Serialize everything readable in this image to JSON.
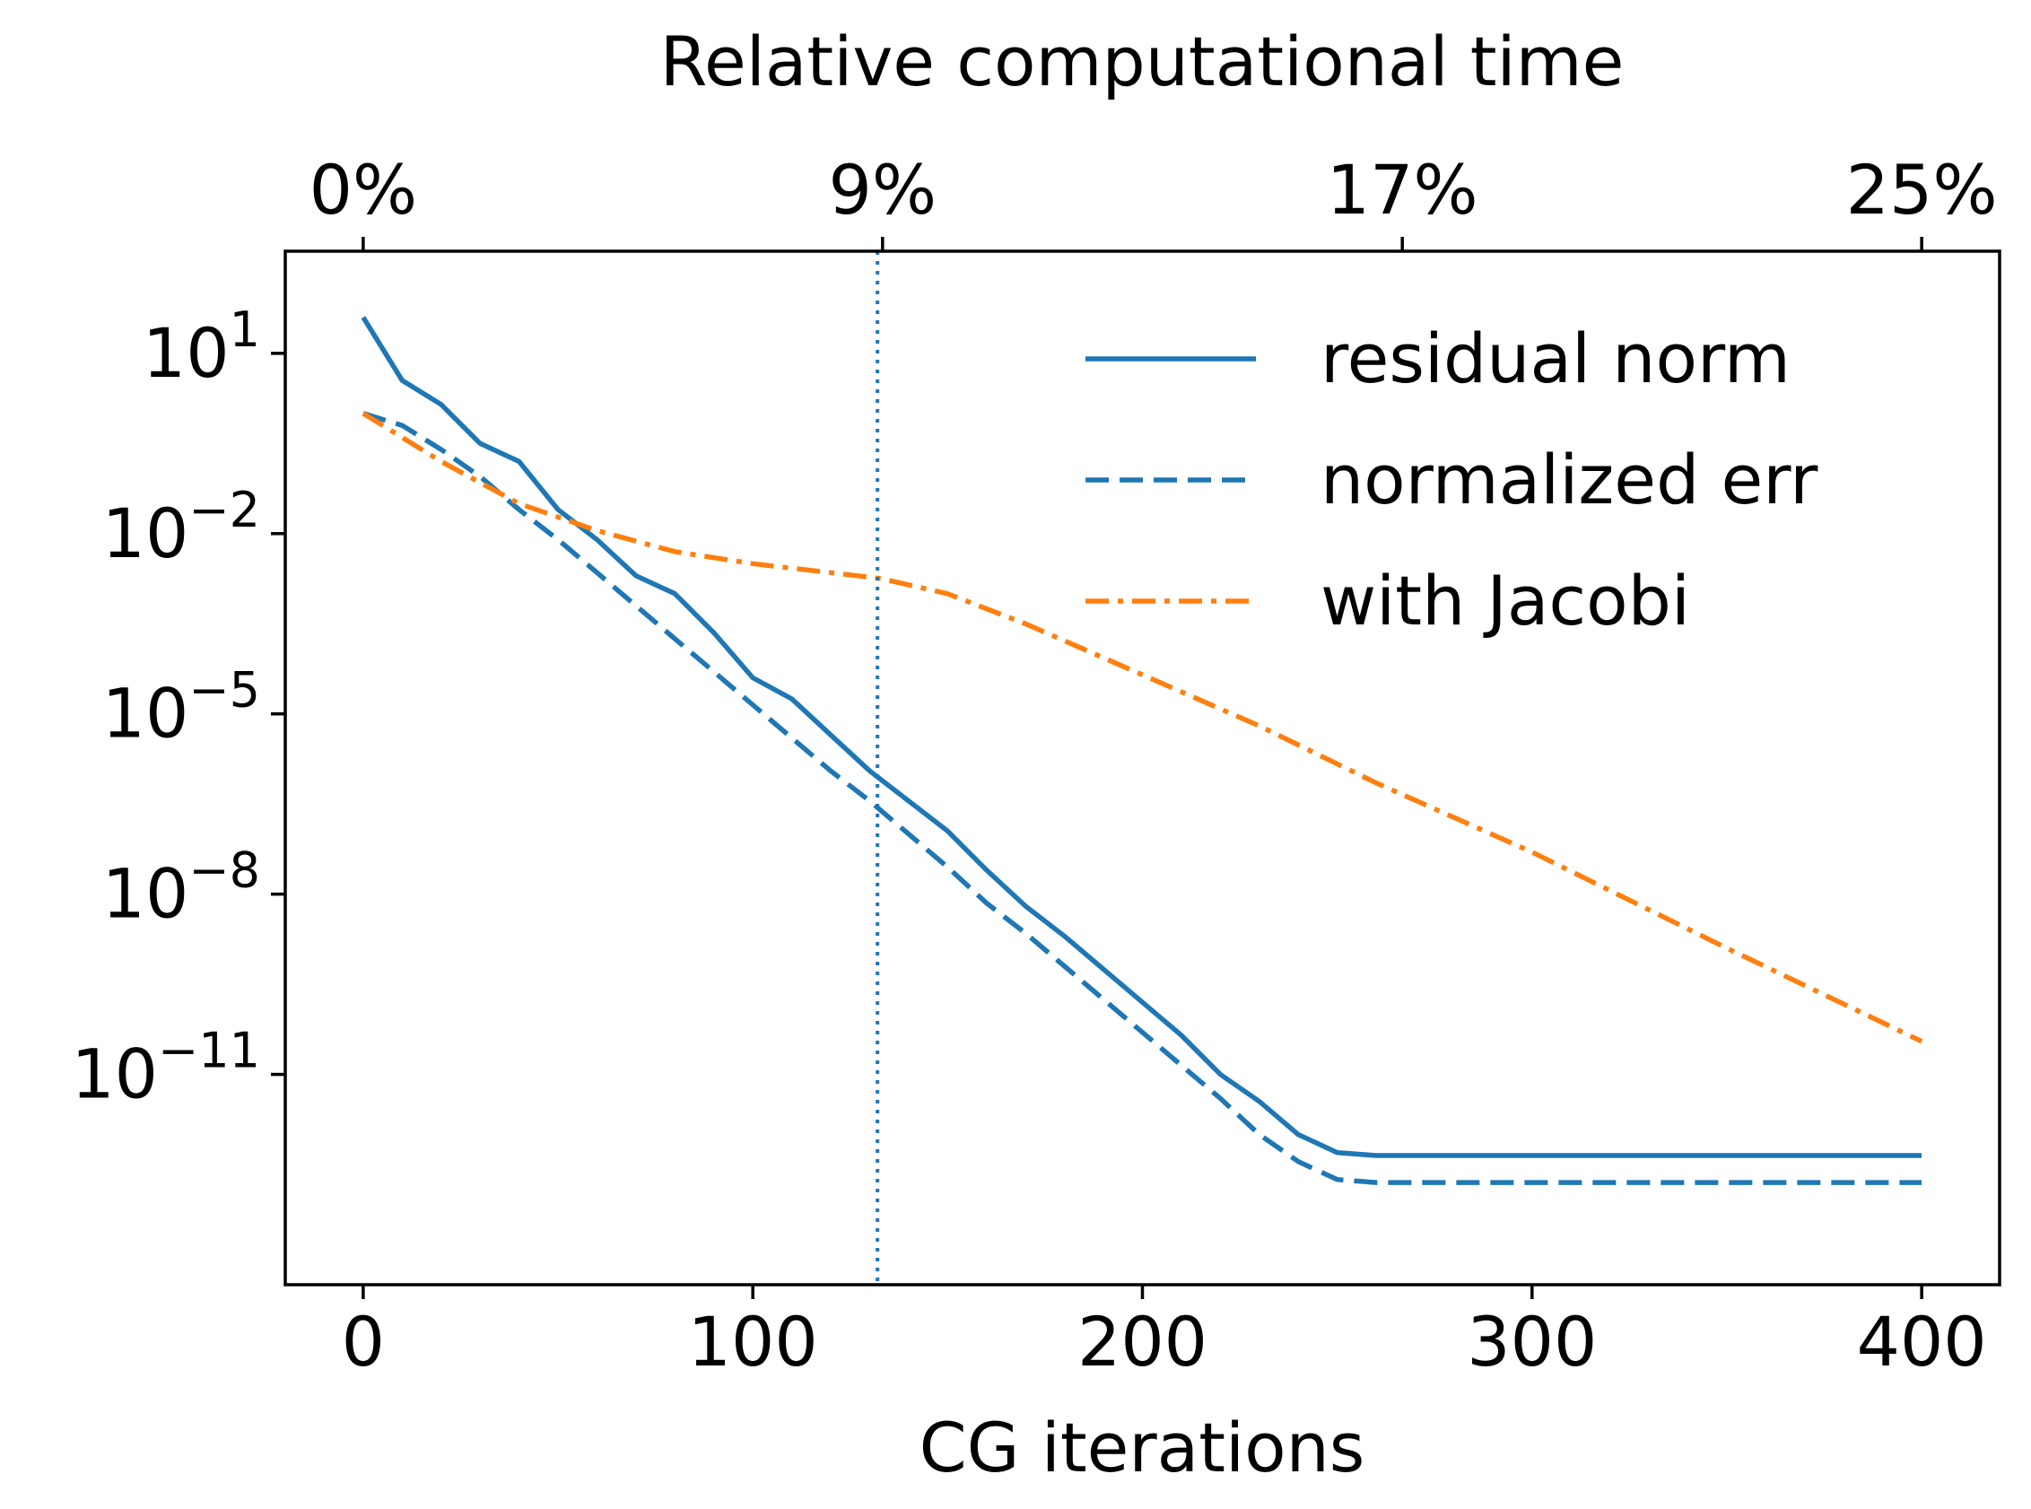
{
  "chart_data": {
    "type": "line",
    "title": "",
    "xlabel": "CG iterations",
    "ylabel": "",
    "top_xlabel": "Relative computational time",
    "yscale": "log",
    "xlim": [
      -20,
      420
    ],
    "ylim_exp": [
      -14.5,
      2.7
    ],
    "x_ticks": [
      {
        "value": 0,
        "label": "0"
      },
      {
        "value": 100,
        "label": "100"
      },
      {
        "value": 200,
        "label": "200"
      },
      {
        "value": 300,
        "label": "300"
      },
      {
        "value": 400,
        "label": "400"
      }
    ],
    "y_ticks": [
      {
        "exp": 1,
        "base": "10",
        "sup": "1"
      },
      {
        "exp": -2,
        "base": "10",
        "sup": "−2"
      },
      {
        "exp": -5,
        "base": "10",
        "sup": "−5"
      },
      {
        "exp": -8,
        "base": "10",
        "sup": "−8"
      },
      {
        "exp": -11,
        "base": "10",
        "sup": "−11"
      }
    ],
    "top_ticks": [
      {
        "value": 0,
        "label": "0%"
      },
      {
        "value": 133.3,
        "label": "9%"
      },
      {
        "value": 266.7,
        "label": "17%"
      },
      {
        "value": 400,
        "label": "25%"
      }
    ],
    "vline_x": 132,
    "legend_position": "top-right",
    "grid": false,
    "series": [
      {
        "name": "residual norm",
        "color": "#1f77b4",
        "style": "solid",
        "x": [
          0,
          10,
          20,
          30,
          40,
          50,
          60,
          70,
          80,
          90,
          100,
          110,
          120,
          130,
          140,
          150,
          160,
          170,
          180,
          190,
          200,
          210,
          220,
          230,
          240,
          250,
          260,
          270,
          300,
          350,
          400
        ],
        "log10y": [
          1.6,
          0.55,
          0.15,
          -0.5,
          -0.8,
          -1.6,
          -2.1,
          -2.7,
          -3.0,
          -3.65,
          -4.4,
          -4.75,
          -5.35,
          -5.95,
          -6.45,
          -6.95,
          -7.6,
          -8.2,
          -8.7,
          -9.25,
          -9.8,
          -10.35,
          -11.0,
          -11.45,
          -12.0,
          -12.3,
          -12.35,
          -12.35,
          -12.35,
          -12.35,
          -12.35
        ]
      },
      {
        "name": "normalized err",
        "color": "#1f77b4",
        "style": "dashed",
        "x": [
          0,
          10,
          20,
          30,
          40,
          50,
          60,
          70,
          80,
          90,
          100,
          110,
          120,
          130,
          140,
          150,
          160,
          170,
          180,
          190,
          200,
          210,
          220,
          230,
          240,
          250,
          260,
          300,
          350,
          400
        ],
        "log10y": [
          0.0,
          -0.2,
          -0.6,
          -1.05,
          -1.6,
          -2.1,
          -2.65,
          -3.2,
          -3.75,
          -4.3,
          -4.85,
          -5.4,
          -5.95,
          -6.45,
          -7.0,
          -7.55,
          -8.15,
          -8.65,
          -9.2,
          -9.75,
          -10.3,
          -10.85,
          -11.4,
          -12.0,
          -12.45,
          -12.75,
          -12.8,
          -12.8,
          -12.8,
          -12.8
        ]
      },
      {
        "name": "with Jacobi",
        "color": "#ff7f0e",
        "style": "dashdot",
        "x": [
          0,
          20,
          40,
          60,
          80,
          100,
          120,
          133,
          150,
          170,
          200,
          230,
          260,
          300,
          350,
          400
        ],
        "log10y": [
          0.0,
          -0.8,
          -1.5,
          -1.95,
          -2.3,
          -2.5,
          -2.65,
          -2.75,
          -3.0,
          -3.5,
          -4.35,
          -5.2,
          -6.15,
          -7.3,
          -8.9,
          -10.45
        ]
      }
    ]
  }
}
